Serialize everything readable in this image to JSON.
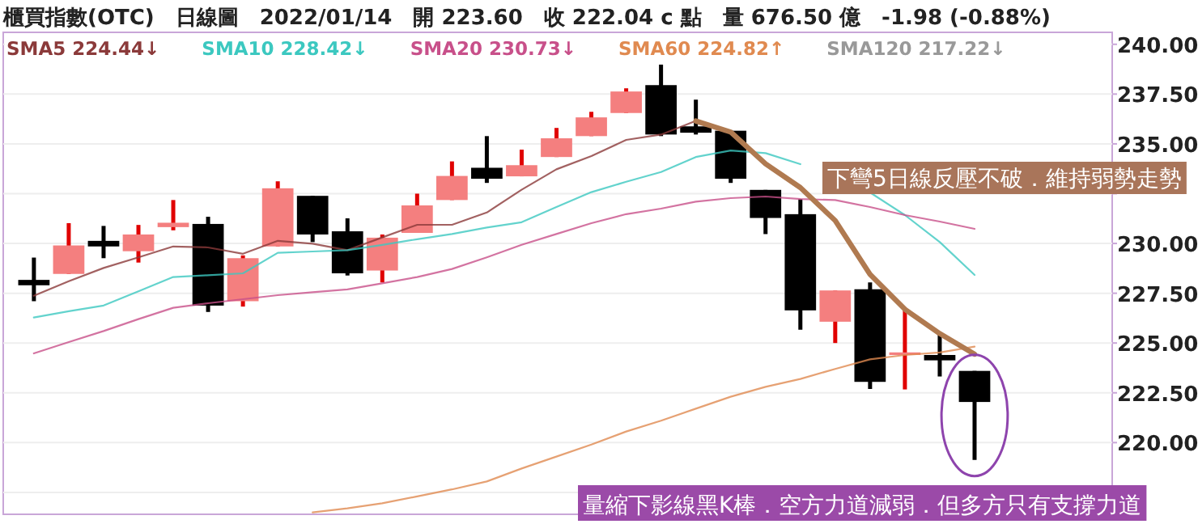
{
  "chart_data": {
    "type": "candlestick",
    "title": "櫃買指數(OTC)　日線圖　2022/01/14　開 223.60　收 222.04 c 點　量 676.50 億　-1.98 (-0.88%)",
    "categories": [
      null,
      null,
      null,
      null,
      null,
      null,
      null,
      null,
      null,
      null,
      null,
      null,
      null,
      null,
      null,
      null,
      null,
      null,
      null,
      null,
      null,
      null,
      null,
      null,
      null,
      null,
      null,
      null
    ],
    "ohlc": [
      [
        228.17,
        229.29,
        227.1,
        227.9
      ],
      [
        228.47,
        231.02,
        228.47,
        229.9
      ],
      [
        230.13,
        230.88,
        229.26,
        229.85
      ],
      [
        229.61,
        230.93,
        229.04,
        230.45
      ],
      [
        230.82,
        232.18,
        230.66,
        231.04
      ],
      [
        230.98,
        231.34,
        226.56,
        226.88
      ],
      [
        227.1,
        229.4,
        226.83,
        229.26
      ],
      [
        229.85,
        233.12,
        229.85,
        232.77
      ],
      [
        232.39,
        232.39,
        230.07,
        230.45
      ],
      [
        230.61,
        231.26,
        228.39,
        228.5
      ],
      [
        228.64,
        230.45,
        228.04,
        230.29
      ],
      [
        230.53,
        232.5,
        230.53,
        231.91
      ],
      [
        232.18,
        234.12,
        232.18,
        233.39
      ],
      [
        233.8,
        235.39,
        233.04,
        233.25
      ],
      [
        233.37,
        234.71,
        233.37,
        233.93
      ],
      [
        234.34,
        235.8,
        234.34,
        235.28
      ],
      [
        235.39,
        236.61,
        235.39,
        236.33
      ],
      [
        236.55,
        237.79,
        236.55,
        237.63
      ],
      [
        237.95,
        238.98,
        235.39,
        235.47
      ],
      [
        235.88,
        237.22,
        235.47,
        235.56
      ],
      [
        235.66,
        235.66,
        233.04,
        233.25
      ],
      [
        232.69,
        232.69,
        230.47,
        231.28
      ],
      [
        231.47,
        232.23,
        225.67,
        226.64
      ],
      [
        226.07,
        227.64,
        225.0,
        227.64
      ],
      [
        227.7,
        228.04,
        222.69,
        223.05
      ],
      [
        224.4,
        226.77,
        222.67,
        224.53
      ],
      [
        224.4,
        225.43,
        223.32,
        224.13
      ],
      [
        223.6,
        223.6,
        219.13,
        222.04
      ]
    ],
    "series": [
      {
        "type": "line",
        "name": "SMA5 224.44↓",
        "color": "#8b3a3a",
        "values": [
          227.37,
          228.1,
          228.77,
          229.3,
          229.85,
          229.8,
          229.48,
          230.13,
          229.99,
          229.66,
          230.3,
          230.94,
          230.94,
          231.55,
          232.7,
          233.72,
          234.39,
          235.2,
          235.47,
          236.15,
          235.6,
          234.0,
          232.8,
          231.15,
          228.45,
          226.69,
          225.47,
          224.44
        ]
      },
      {
        "type": "line",
        "name": "SMA10 228.42↓",
        "color": "#3cc8c0",
        "values": [
          226.28,
          226.6,
          226.88,
          227.6,
          228.31,
          228.4,
          228.5,
          229.53,
          229.6,
          229.66,
          229.93,
          230.21,
          230.47,
          230.8,
          231.07,
          231.83,
          232.58,
          233.1,
          233.58,
          234.34,
          234.66,
          234.53,
          233.98,
          null,
          232.56,
          231.42,
          230.07,
          228.42
        ]
      },
      {
        "type": "line",
        "name": "SMA20 230.73↓",
        "color": "#c8508a",
        "values": [
          224.48,
          225.05,
          225.6,
          226.2,
          226.77,
          227.0,
          227.2,
          227.4,
          227.55,
          227.7,
          228.0,
          228.31,
          228.72,
          229.3,
          229.93,
          230.47,
          231.02,
          231.47,
          231.75,
          232.1,
          232.28,
          232.36,
          232.23,
          232.18,
          231.83,
          231.42,
          231.1,
          230.73
        ]
      },
      {
        "type": "line",
        "name": "SMA60 224.82↑",
        "color": "#e08a50",
        "values": [
          null,
          null,
          null,
          null,
          null,
          null,
          null,
          null,
          216.5,
          216.7,
          216.95,
          217.3,
          217.65,
          218.05,
          218.7,
          219.3,
          219.9,
          220.56,
          221.1,
          221.7,
          222.3,
          222.8,
          223.2,
          223.7,
          224.18,
          224.4,
          224.53,
          224.82
        ]
      },
      {
        "type": "line",
        "name": "SMA120 217.22↓",
        "color": "#999999",
        "values": [
          null,
          null,
          null,
          null,
          null,
          null,
          null,
          null,
          null,
          null,
          null,
          null,
          null,
          null,
          null,
          null,
          null,
          null,
          null,
          null,
          null,
          null,
          null,
          null,
          null,
          null,
          null,
          null
        ]
      },
      {
        "type": "line",
        "color": "#b07a50",
        "values": [
          null,
          null,
          null,
          null,
          null,
          null,
          null,
          null,
          null,
          null,
          null,
          null,
          null,
          null,
          null,
          null,
          null,
          null,
          null,
          236.15,
          235.6,
          234.0,
          232.8,
          231.15,
          228.45,
          226.69,
          225.47,
          224.44
        ]
      }
    ],
    "ylim": [
      216.4,
      240.6
    ],
    "yticks": [
      {
        "value": 217.5,
        "label": null
      },
      {
        "value": 220,
        "label": "220.00"
      },
      {
        "value": 222.5,
        "label": "222.50"
      },
      {
        "value": 225,
        "label": "225.00"
      },
      {
        "value": 227.5,
        "label": "227.50"
      },
      {
        "value": 230,
        "label": "230.00"
      },
      {
        "value": 232.5,
        "label": null
      },
      {
        "value": 235,
        "label": "235.00"
      },
      {
        "value": 237.5,
        "label": "237.50"
      },
      {
        "value": 240,
        "label": "240.00"
      }
    ],
    "grid": "y",
    "legend": "top left",
    "annotations": [
      "下彎5日線反壓不破．維持弱勢走勢",
      "量縮下影線黑K棒．空方力道減弱．但多方只有支撐力道"
    ]
  }
}
